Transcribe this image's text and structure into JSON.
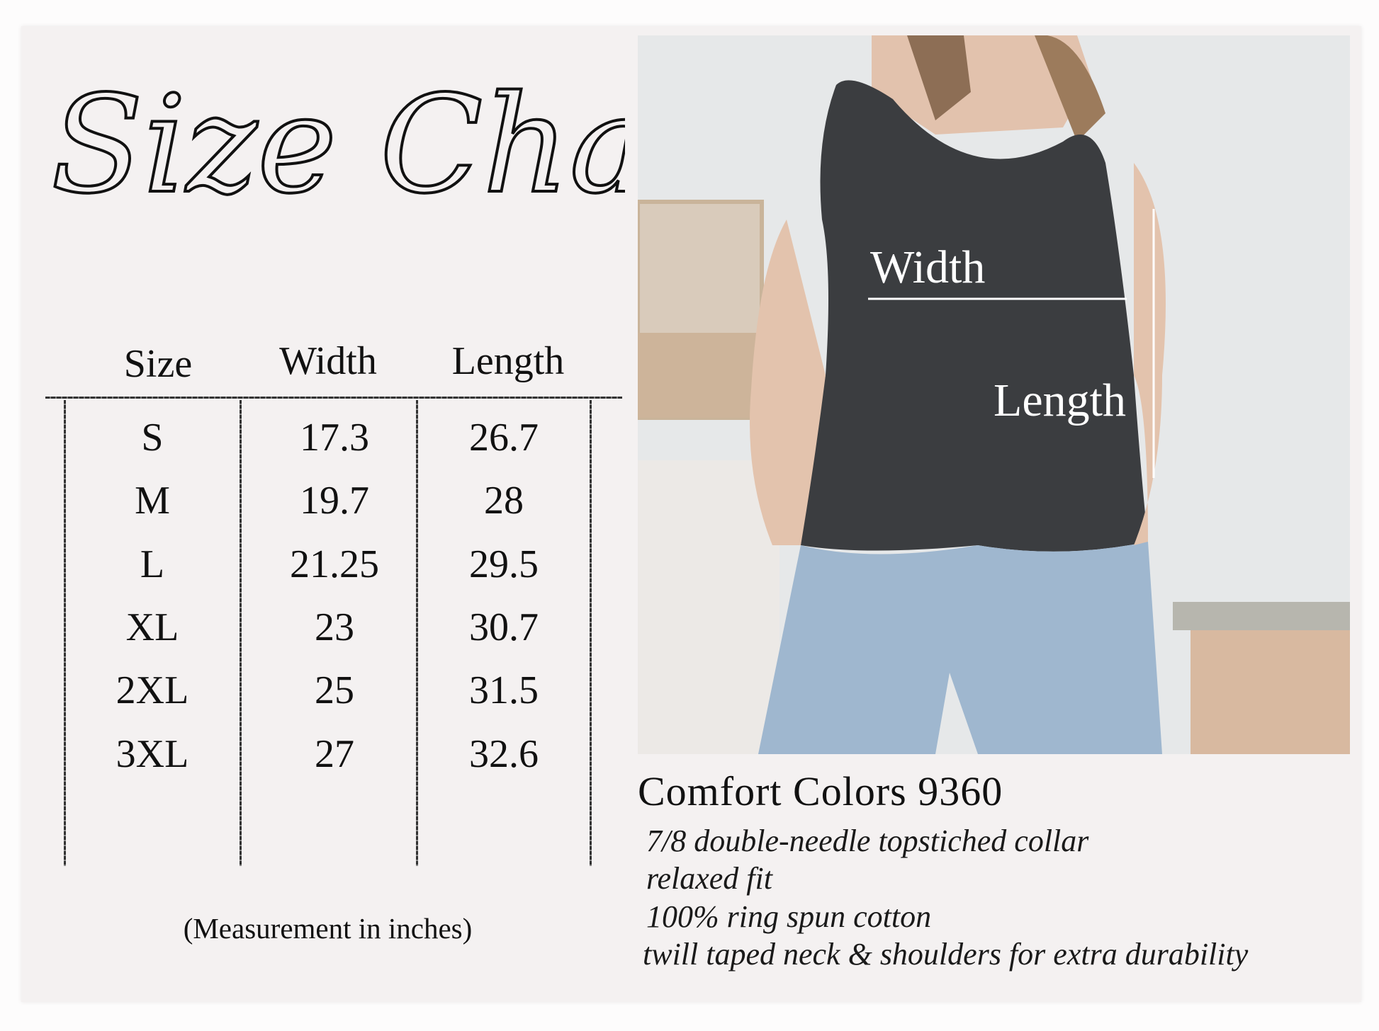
{
  "title": "Size Chart",
  "table": {
    "headers": [
      "Size",
      "Width",
      "Length"
    ],
    "rows": [
      {
        "size": "S",
        "width": "17.3",
        "length": "26.7"
      },
      {
        "size": "M",
        "width": "19.7",
        "length": "28"
      },
      {
        "size": "L",
        "width": "21.25",
        "length": "29.5"
      },
      {
        "size": "XL",
        "width": "23",
        "length": "30.7"
      },
      {
        "size": "2XL",
        "width": "25",
        "length": "31.5"
      },
      {
        "size": "3XL",
        "width": "27",
        "length": "32.6"
      }
    ],
    "note": "(Measurement in inches)"
  },
  "photo": {
    "width_label": "Width",
    "length_label": "Length",
    "shirt_color": "#3b3d40"
  },
  "product": {
    "name": "Comfort Colors 9360",
    "features": [
      "7/8 double-needle topstiched collar",
      "relaxed fit",
      "100% ring spun cotton",
      "twill taped neck & shoulders for extra durability"
    ]
  }
}
